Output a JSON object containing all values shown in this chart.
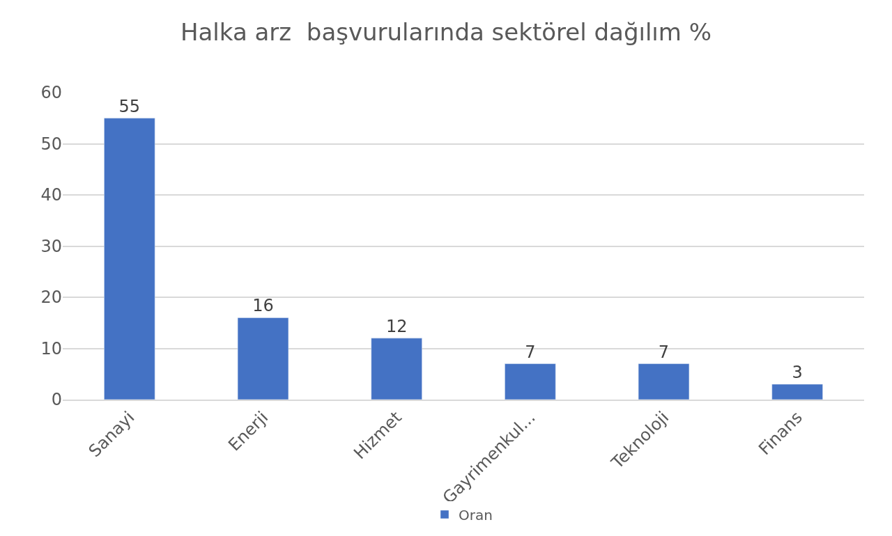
{
  "chart_data": {
    "type": "bar",
    "title": "Halka arz  başvurularında sektörel dağılım %",
    "categories": [
      "Sanayi",
      "Enerji",
      "Hizmet",
      "Gayrimenkul...",
      "Teknoloji",
      "Finans"
    ],
    "series": [
      {
        "name": "Oran",
        "color": "#4472c4",
        "values": [
          55,
          16,
          12,
          7,
          7,
          3
        ]
      }
    ],
    "ylim": [
      0,
      60
    ],
    "yticks": [
      0,
      10,
      20,
      30,
      40,
      50,
      60
    ],
    "grid": "y",
    "legend": "bottom",
    "data_labels": true
  }
}
